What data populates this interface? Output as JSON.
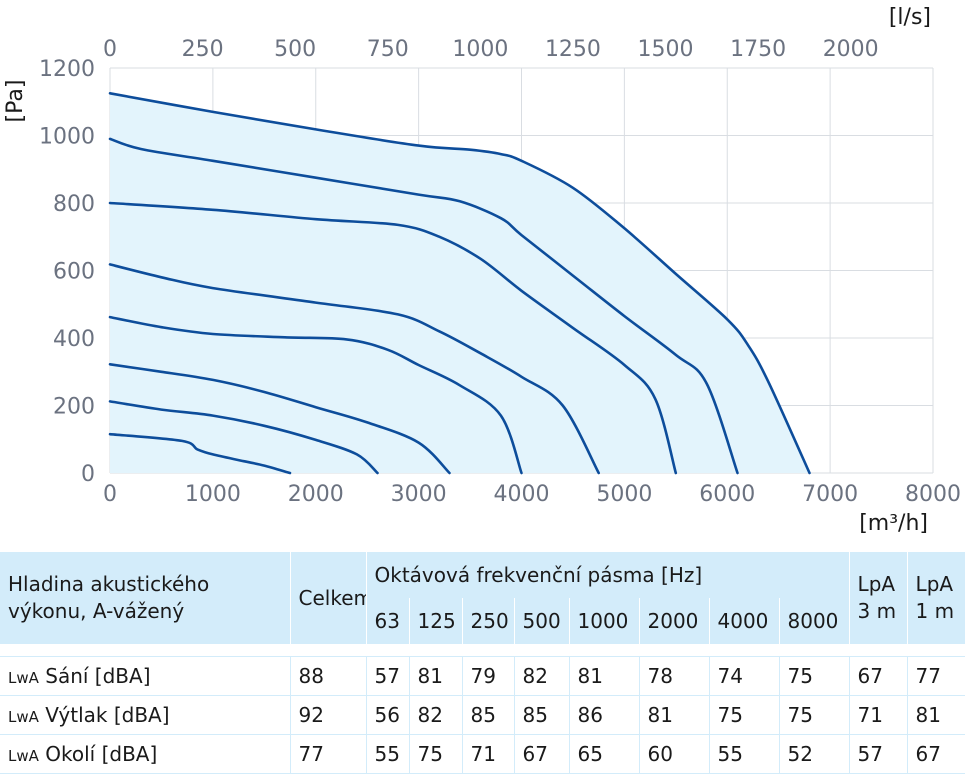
{
  "chart_data": {
    "type": "line",
    "x_axis_bottom": {
      "label": "[m³/h]",
      "ticks": [
        0,
        1000,
        2000,
        3000,
        4000,
        5000,
        6000,
        7000,
        8000
      ],
      "range": [
        0,
        8000
      ]
    },
    "x_axis_top": {
      "label": "[l/s]",
      "ticks": [
        0,
        250,
        500,
        750,
        1000,
        1250,
        1500,
        1750,
        2000
      ]
    },
    "y_axis": {
      "label": "[Pa]",
      "ticks": [
        0,
        200,
        400,
        600,
        800,
        1000,
        1200
      ],
      "range": [
        0,
        1200
      ]
    },
    "grid": true,
    "area_fill": "#e3f4fc",
    "line_color": "#0d4d9b",
    "series": [
      {
        "points": [
          [
            0,
            1125
          ],
          [
            1000,
            1070
          ],
          [
            2000,
            1018
          ],
          [
            3000,
            970
          ],
          [
            3500,
            958
          ],
          [
            3800,
            945
          ],
          [
            4000,
            925
          ],
          [
            4500,
            845
          ],
          [
            5000,
            725
          ],
          [
            5500,
            590
          ],
          [
            6000,
            455
          ],
          [
            6200,
            380
          ],
          [
            6400,
            270
          ],
          [
            6800,
            0
          ]
        ]
      },
      {
        "points": [
          [
            0,
            990
          ],
          [
            300,
            960
          ],
          [
            1000,
            925
          ],
          [
            2000,
            875
          ],
          [
            3000,
            825
          ],
          [
            3400,
            805
          ],
          [
            3800,
            755
          ],
          [
            4000,
            705
          ],
          [
            4500,
            585
          ],
          [
            5000,
            465
          ],
          [
            5500,
            350
          ],
          [
            5800,
            265
          ],
          [
            6100,
            0
          ]
        ]
      },
      {
        "points": [
          [
            0,
            800
          ],
          [
            1000,
            780
          ],
          [
            2000,
            752
          ],
          [
            2800,
            735
          ],
          [
            3200,
            700
          ],
          [
            3600,
            635
          ],
          [
            4000,
            540
          ],
          [
            4500,
            430
          ],
          [
            5000,
            320
          ],
          [
            5300,
            220
          ],
          [
            5500,
            0
          ]
        ]
      },
      {
        "points": [
          [
            0,
            618
          ],
          [
            500,
            580
          ],
          [
            1000,
            548
          ],
          [
            2000,
            505
          ],
          [
            2800,
            470
          ],
          [
            3200,
            420
          ],
          [
            3600,
            355
          ],
          [
            4000,
            285
          ],
          [
            4400,
            200
          ],
          [
            4750,
            0
          ]
        ]
      },
      {
        "points": [
          [
            0,
            462
          ],
          [
            500,
            432
          ],
          [
            1000,
            412
          ],
          [
            1700,
            402
          ],
          [
            2300,
            396
          ],
          [
            2700,
            365
          ],
          [
            3000,
            320
          ],
          [
            3400,
            260
          ],
          [
            3800,
            170
          ],
          [
            4000,
            0
          ]
        ]
      },
      {
        "points": [
          [
            0,
            322
          ],
          [
            500,
            300
          ],
          [
            1000,
            276
          ],
          [
            1500,
            240
          ],
          [
            2000,
            195
          ],
          [
            2500,
            150
          ],
          [
            3000,
            90
          ],
          [
            3300,
            0
          ]
        ]
      },
      {
        "points": [
          [
            0,
            212
          ],
          [
            500,
            188
          ],
          [
            1000,
            170
          ],
          [
            1500,
            140
          ],
          [
            2000,
            98
          ],
          [
            2400,
            55
          ],
          [
            2600,
            0
          ]
        ]
      },
      {
        "points": [
          [
            0,
            115
          ],
          [
            700,
            95
          ],
          [
            850,
            70
          ],
          [
            1000,
            55
          ],
          [
            1300,
            35
          ],
          [
            1500,
            22
          ],
          [
            1750,
            0
          ]
        ]
      }
    ]
  },
  "table": {
    "header": {
      "row_label": "Hladina akustického výkonu, A-vážený",
      "total": "Celkem",
      "bands_title": "Oktávová frekvenční pásma [Hz]",
      "bands": [
        "63",
        "125",
        "250",
        "500",
        "1000",
        "2000",
        "4000",
        "8000"
      ],
      "lpa3": "LpA 3 m",
      "lpa1": "LpA 1 m"
    },
    "rows": [
      {
        "prefix": "LwA",
        "label": "Sání [dBA]",
        "total": "88",
        "bands": [
          "57",
          "81",
          "79",
          "82",
          "81",
          "78",
          "74",
          "75"
        ],
        "lpa3": "67",
        "lpa1": "77"
      },
      {
        "prefix": "LwA",
        "label": "Výtlak [dBA]",
        "total": "92",
        "bands": [
          "56",
          "82",
          "85",
          "85",
          "86",
          "81",
          "75",
          "75"
        ],
        "lpa3": "71",
        "lpa1": "81"
      },
      {
        "prefix": "LwA",
        "label": "Okolí [dBA]",
        "total": "77",
        "bands": [
          "55",
          "75",
          "71",
          "67",
          "65",
          "60",
          "55",
          "52"
        ],
        "lpa3": "57",
        "lpa1": "67"
      }
    ]
  }
}
